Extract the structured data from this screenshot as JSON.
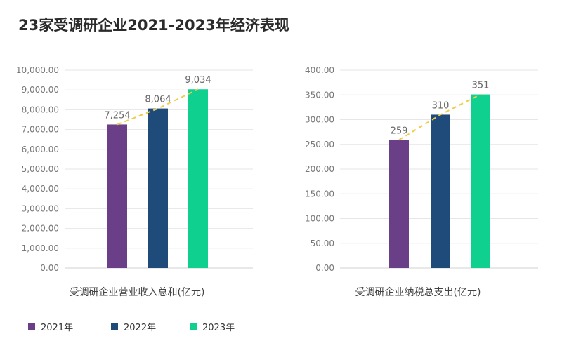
{
  "title": "23家受调研企业2021-2023年经济表现",
  "colors": {
    "2021": "#6b3f87",
    "2022": "#1e4b7a",
    "2023": "#0fd08f",
    "trend": "#f0cc4a",
    "grid": "#e6e6e6"
  },
  "legend": [
    {
      "label": "2021年",
      "color_key": "2021"
    },
    {
      "label": "2022年",
      "color_key": "2022"
    },
    {
      "label": "2023年",
      "color_key": "2023"
    }
  ],
  "chart_data": [
    {
      "type": "bar",
      "caption": "受调研企业营业收入总和(亿元)",
      "categories": [
        "2021年",
        "2022年",
        "2023年"
      ],
      "values": [
        7254,
        8064,
        9034
      ],
      "value_labels": [
        "7,254",
        "8,064",
        "9,034"
      ],
      "ylim": [
        0,
        10000
      ],
      "yticks": [
        "0.00",
        "1,000.00",
        "2,000.00",
        "3,000.00",
        "4,000.00",
        "5,000.00",
        "6,000.00",
        "7,000.00",
        "8,000.00",
        "9,000.00",
        "10,000.00"
      ],
      "trendline": "dashed",
      "grid": true
    },
    {
      "type": "bar",
      "caption": "受调研企业纳税总支出(亿元)",
      "categories": [
        "2021年",
        "2022年",
        "2023年"
      ],
      "values": [
        259,
        310,
        351
      ],
      "value_labels": [
        "259",
        "310",
        "351"
      ],
      "ylim": [
        0,
        400
      ],
      "yticks": [
        "0.00",
        "50.00",
        "100.00",
        "150.00",
        "200.00",
        "250.00",
        "300.00",
        "350.00",
        "400.00"
      ],
      "trendline": "dashed",
      "grid": true
    }
  ]
}
